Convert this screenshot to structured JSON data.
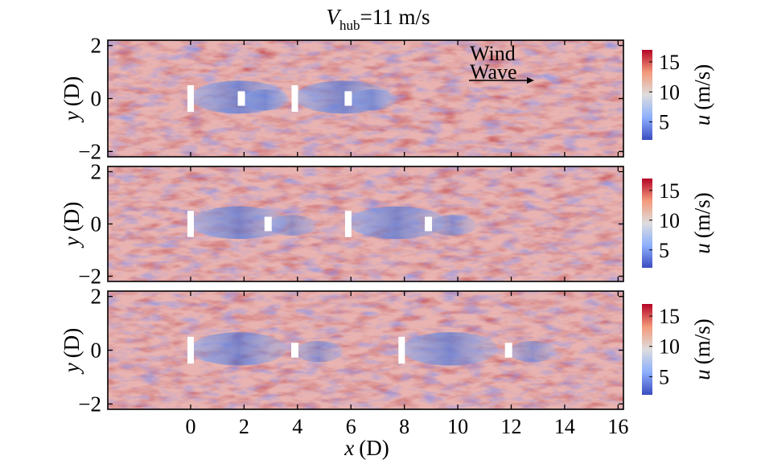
{
  "figure": {
    "title_prefix": "V",
    "title_subscript": "hub",
    "title_suffix": "=11 m/s",
    "xlabel_symbol": "x",
    "xlabel_unit": "(D)",
    "ylabel_symbol": "y",
    "ylabel_unit": "(D)",
    "colorbar_label_symbol": "u",
    "colorbar_label_unit": "(m/s)",
    "annotation_wind": "Wind",
    "annotation_wave": "Wave"
  },
  "chart_data": {
    "type": "heatmap",
    "variable": "u",
    "unit": "m/s",
    "xlim": [
      -3.1,
      16.2
    ],
    "ylim": [
      -2.2,
      2.2
    ],
    "x_ticks": [
      0,
      2,
      4,
      6,
      8,
      10,
      12,
      14,
      16
    ],
    "y_ticks": [
      -2,
      0,
      2
    ],
    "colorbar": {
      "range": [
        2,
        17
      ],
      "ticks": [
        5,
        10,
        15
      ],
      "colormap": "coolwarm",
      "low_color": "#3b4cc0",
      "mid_color": "#dddddd",
      "high_color": "#b40426"
    },
    "panels": [
      {
        "turbines": [
          {
            "x": 0,
            "y": 0,
            "diameter": 1.0
          },
          {
            "x": 1.9,
            "y": 0,
            "diameter": 0.55
          },
          {
            "x": 3.9,
            "y": 0,
            "diameter": 1.0
          },
          {
            "x": 5.9,
            "y": 0,
            "diameter": 0.55
          }
        ]
      },
      {
        "turbines": [
          {
            "x": 0,
            "y": 0,
            "diameter": 1.0
          },
          {
            "x": 2.9,
            "y": 0,
            "diameter": 0.55
          },
          {
            "x": 5.9,
            "y": 0,
            "diameter": 1.0
          },
          {
            "x": 8.9,
            "y": 0,
            "diameter": 0.55
          }
        ]
      },
      {
        "turbines": [
          {
            "x": 0,
            "y": 0,
            "diameter": 1.0
          },
          {
            "x": 3.9,
            "y": 0,
            "diameter": 0.55
          },
          {
            "x": 7.9,
            "y": 0,
            "diameter": 1.0
          },
          {
            "x": 11.9,
            "y": 0,
            "diameter": 0.55
          }
        ]
      }
    ]
  }
}
